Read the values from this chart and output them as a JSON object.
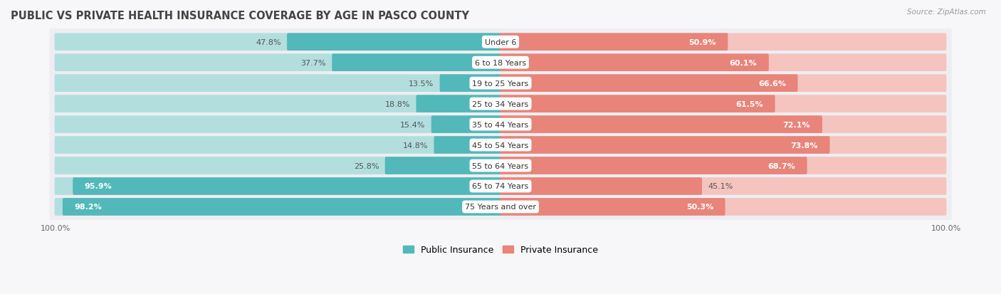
{
  "title": "PUBLIC VS PRIVATE HEALTH INSURANCE COVERAGE BY AGE IN PASCO COUNTY",
  "source": "Source: ZipAtlas.com",
  "categories": [
    "Under 6",
    "6 to 18 Years",
    "19 to 25 Years",
    "25 to 34 Years",
    "35 to 44 Years",
    "45 to 54 Years",
    "55 to 64 Years",
    "65 to 74 Years",
    "75 Years and over"
  ],
  "public_values": [
    47.8,
    37.7,
    13.5,
    18.8,
    15.4,
    14.8,
    25.8,
    95.9,
    98.2
  ],
  "private_values": [
    50.9,
    60.1,
    66.6,
    61.5,
    72.1,
    73.8,
    68.7,
    45.1,
    50.3
  ],
  "public_color": "#52b8ba",
  "private_color": "#e8847a",
  "public_color_light": "#b2dede",
  "private_color_light": "#f5c4be",
  "row_bg_color": "#eeeef2",
  "fig_bg_color": "#f7f7fa",
  "legend_public": "Public Insurance",
  "legend_private": "Private Insurance",
  "title_fontsize": 10.5,
  "label_fontsize": 8,
  "value_fontsize": 8,
  "max_value": 100
}
